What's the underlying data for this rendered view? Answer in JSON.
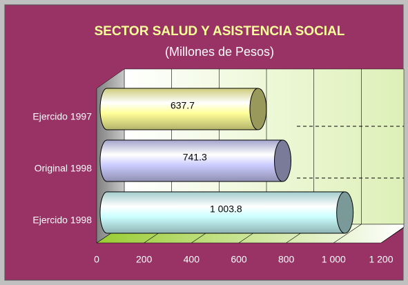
{
  "chart_data": {
    "type": "bar3d",
    "title": "SECTOR SALUD Y ASISTENCIA SOCIAL",
    "subtitle": "(Millones de Pesos)",
    "orientation": "horizontal",
    "categories": [
      "Ejercido 1997",
      "Original 1998",
      "Ejercido 1998"
    ],
    "values": [
      637.7,
      741.3,
      1003.8
    ],
    "value_labels": [
      "637.7",
      "741.3",
      "1 003.8"
    ],
    "colors": [
      "#ffff99",
      "#ccccff",
      "#ccffff"
    ],
    "xlim": [
      0,
      1200
    ],
    "xticks": [
      0,
      200,
      400,
      600,
      800,
      {
        "value": 1000,
        "label": "1 000"
      },
      {
        "value": 1200,
        "label": "1 200"
      }
    ],
    "grid": true
  }
}
